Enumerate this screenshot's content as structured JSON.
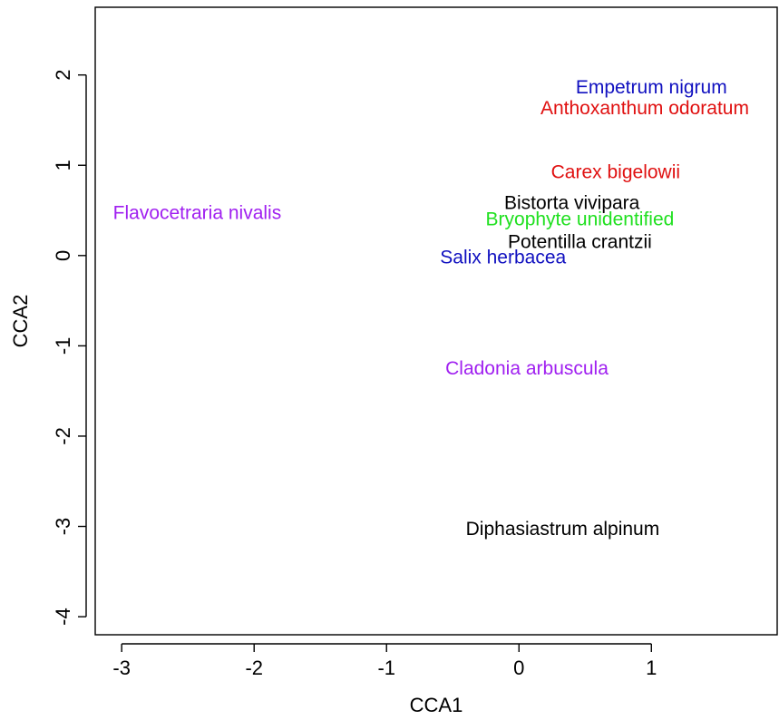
{
  "chart_data": {
    "type": "scatter",
    "xlabel": "CCA1",
    "ylabel": "CCA2",
    "xlim": [
      -3.2,
      1.95
    ],
    "ylim": [
      -4.2,
      2.75
    ],
    "xticks": [
      -3,
      -2,
      -1,
      0,
      1
    ],
    "yticks": [
      -4,
      -3,
      -2,
      -1,
      0,
      1,
      2
    ],
    "grid": false,
    "points": [
      {
        "label": "Empetrum nigrum",
        "x": 1.0,
        "y": 1.86,
        "color": "#1010c0"
      },
      {
        "label": "Anthoxanthum odoratum",
        "x": 0.95,
        "y": 1.63,
        "color": "#e01010"
      },
      {
        "label": "Carex bigelowii",
        "x": 0.73,
        "y": 0.92,
        "color": "#e01010"
      },
      {
        "label": "Flavocetraria nivalis",
        "x": -2.43,
        "y": 0.47,
        "color": "#a020f0"
      },
      {
        "label": "Bistorta vivipara",
        "x": 0.4,
        "y": 0.58,
        "color": "#000000"
      },
      {
        "label": "Bryophyte unidentified",
        "x": 0.46,
        "y": 0.4,
        "color": "#20e020"
      },
      {
        "label": "Potentilla crantzii",
        "x": 0.46,
        "y": 0.15,
        "color": "#000000"
      },
      {
        "label": "Salix herbacea",
        "x": -0.12,
        "y": -0.02,
        "color": "#1010c0"
      },
      {
        "label": "Cladonia arbuscula",
        "x": 0.06,
        "y": -1.25,
        "color": "#a020f0"
      },
      {
        "label": "Diphasiastrum alpinum",
        "x": 0.33,
        "y": -3.03,
        "color": "#000000"
      }
    ]
  }
}
